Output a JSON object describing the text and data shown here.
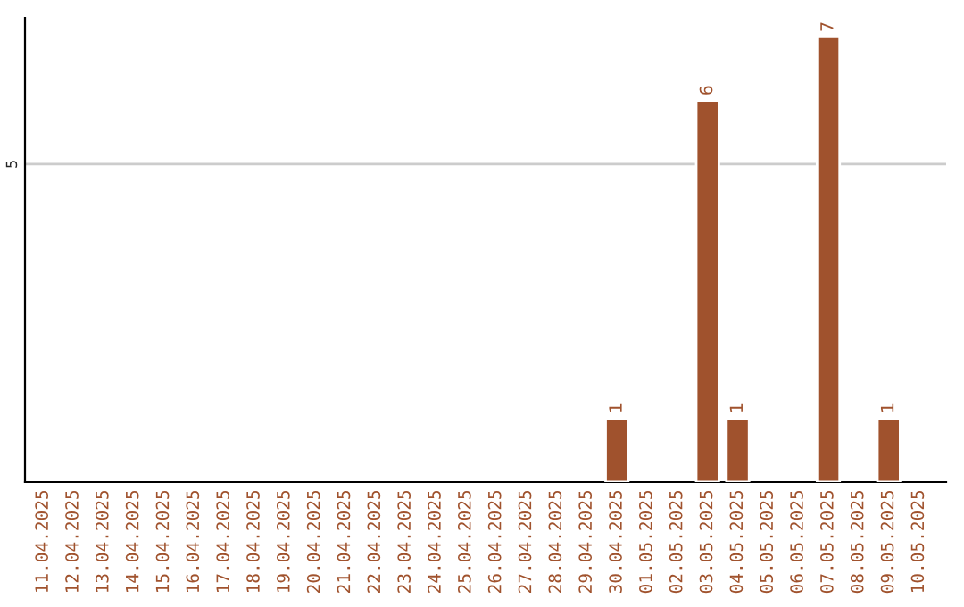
{
  "chart_data": {
    "type": "bar",
    "categories": [
      "11.04.2025",
      "12.04.2025",
      "13.04.2025",
      "14.04.2025",
      "15.04.2025",
      "16.04.2025",
      "17.04.2025",
      "18.04.2025",
      "19.04.2025",
      "20.04.2025",
      "21.04.2025",
      "22.04.2025",
      "23.04.2025",
      "24.04.2025",
      "25.04.2025",
      "26.04.2025",
      "27.04.2025",
      "28.04.2025",
      "29.04.2025",
      "30.04.2025",
      "01.05.2025",
      "02.05.2025",
      "03.05.2025",
      "04.05.2025",
      "05.05.2025",
      "06.05.2025",
      "07.05.2025",
      "08.05.2025",
      "09.05.2025",
      "10.05.2025"
    ],
    "values": [
      null,
      null,
      null,
      null,
      null,
      null,
      null,
      null,
      null,
      null,
      null,
      null,
      null,
      null,
      null,
      null,
      null,
      null,
      null,
      1,
      null,
      null,
      6,
      1,
      null,
      null,
      7,
      null,
      1,
      null
    ],
    "value_labels": [
      null,
      null,
      null,
      null,
      null,
      null,
      null,
      null,
      null,
      null,
      null,
      null,
      null,
      null,
      null,
      null,
      null,
      null,
      null,
      "1",
      null,
      null,
      "6",
      "1",
      null,
      null,
      "7",
      null,
      "1",
      null
    ],
    "ylim": [
      0,
      7.3
    ],
    "color": "#a0522d",
    "ref_lines": [
      {
        "axis": "y",
        "value": 5,
        "label": "5",
        "color": "#cccccc"
      }
    ]
  }
}
